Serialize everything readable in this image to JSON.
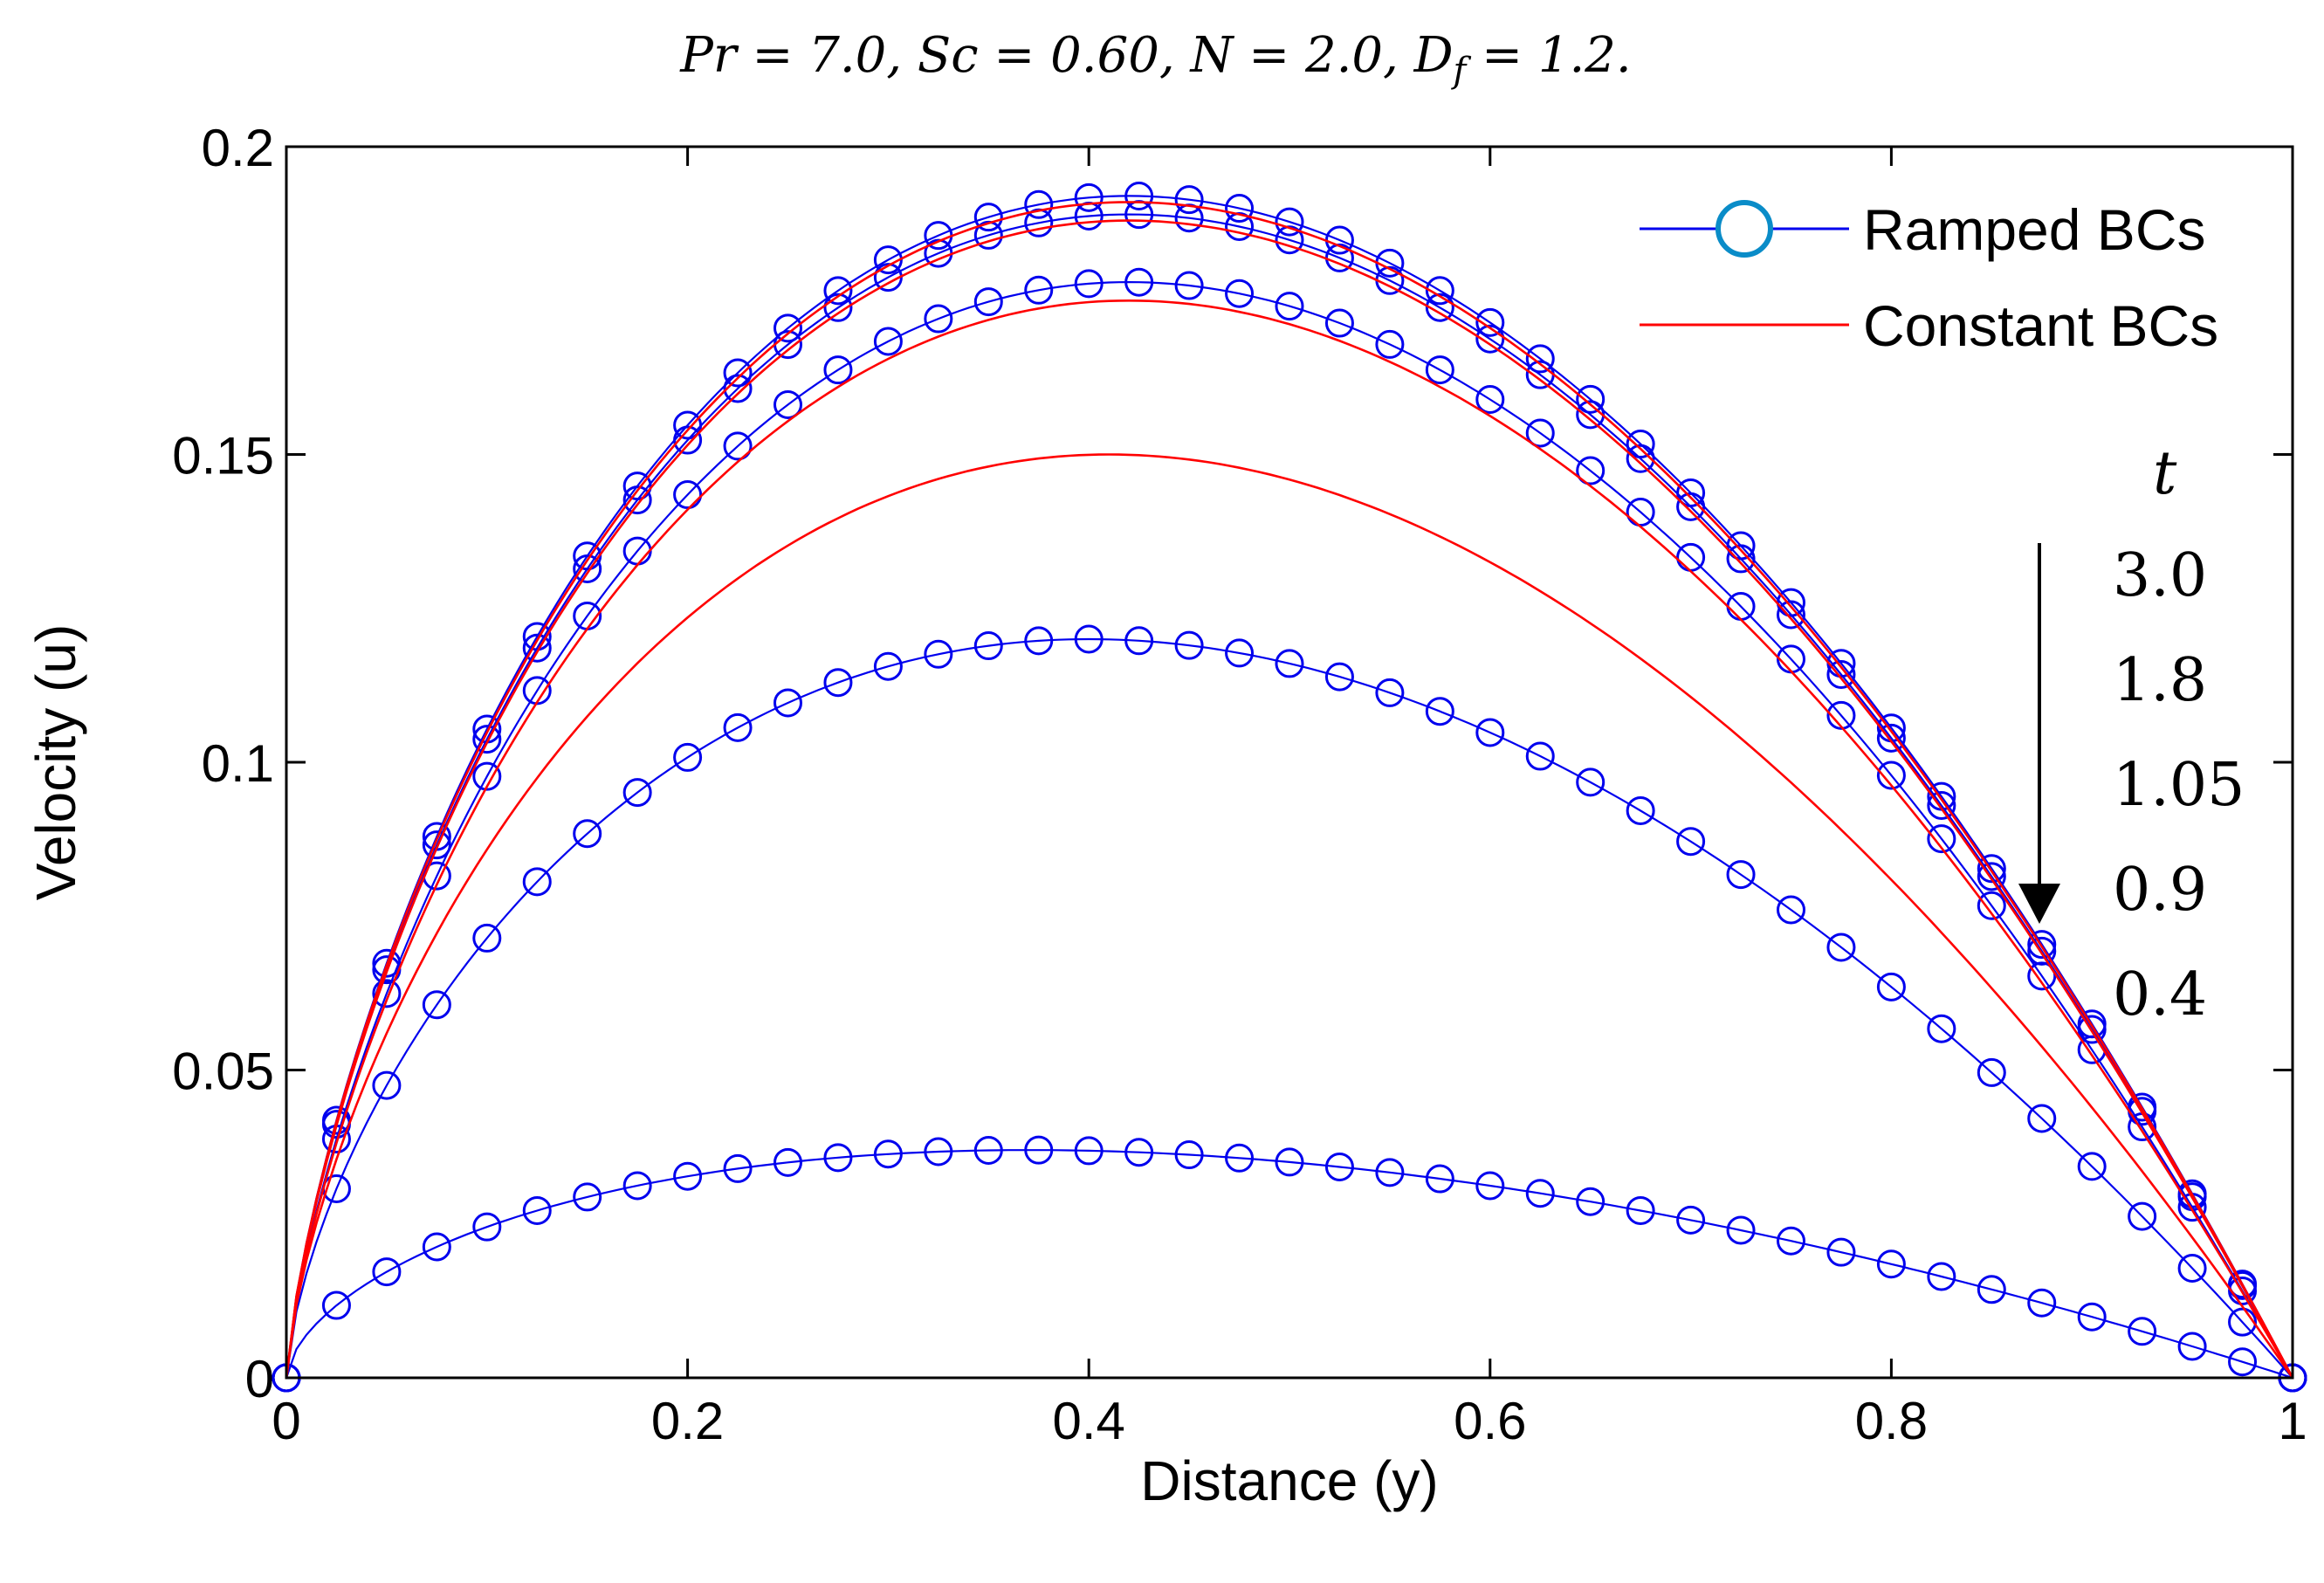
{
  "chart_data": {
    "type": "line",
    "title": "Pr = 7.0, Sc = 0.60, N = 2.0, D_f = 1.2.",
    "xlabel": "Distance (y)",
    "ylabel": "Velocity (u)",
    "xlim": [
      0,
      1
    ],
    "ylim": [
      0,
      0.2
    ],
    "xticks": [
      0,
      0.2,
      0.4,
      0.6,
      0.8,
      1
    ],
    "xtick_labels": [
      "0",
      "0.2",
      "0.4",
      "0.6",
      "0.8",
      "1"
    ],
    "yticks": [
      0,
      0.05,
      0.1,
      0.15,
      0.2
    ],
    "ytick_labels": [
      "0",
      "0.05",
      "0.1",
      "0.15",
      "0.2"
    ],
    "grid": false,
    "legend": {
      "position": "top-right",
      "entries": [
        {
          "label": "Ramped BCs",
          "color": "#0000ee",
          "marker": "circle"
        },
        {
          "label": "Constant BCs",
          "color": "#ff0000",
          "marker": "none"
        }
      ]
    },
    "annotation": {
      "symbol": "t",
      "values": [
        "3.0",
        "1.8",
        "1.05",
        "0.9",
        "0.4"
      ],
      "arrow": "down"
    },
    "series": [
      {
        "name": "Ramped BCs t=3.0",
        "group": "ramped",
        "t": "3.0",
        "peak": 0.192,
        "peak_at": 0.42
      },
      {
        "name": "Ramped BCs t=1.8",
        "group": "ramped",
        "t": "1.8",
        "peak": 0.189,
        "peak_at": 0.42
      },
      {
        "name": "Ramped BCs t=1.05",
        "group": "ramped",
        "t": "1.05",
        "peak": 0.178,
        "peak_at": 0.42
      },
      {
        "name": "Ramped BCs t=0.9",
        "group": "ramped",
        "t": "0.9",
        "peak": 0.12,
        "peak_at": 0.4
      },
      {
        "name": "Ramped BCs t=0.4",
        "group": "ramped",
        "t": "0.4",
        "peak": 0.037,
        "peak_at": 0.37
      },
      {
        "name": "Constant BCs t=3.0",
        "group": "constant",
        "t": "3.0",
        "peak": 0.191,
        "peak_at": 0.42
      },
      {
        "name": "Constant BCs t=1.8",
        "group": "constant",
        "t": "1.8",
        "peak": 0.188,
        "peak_at": 0.42
      },
      {
        "name": "Constant BCs t=1.05",
        "group": "constant",
        "t": "1.05",
        "peak": 0.175,
        "peak_at": 0.42
      },
      {
        "name": "Constant BCs t=0.9",
        "group": "constant",
        "t": "0.9",
        "peak": 0.15,
        "peak_at": 0.41
      }
    ],
    "marker_x_step": 0.025
  },
  "colors": {
    "ramped": "#0000ee",
    "constant": "#ff0000",
    "legend_marker": "#0a8cc8",
    "axis": "#000000"
  }
}
